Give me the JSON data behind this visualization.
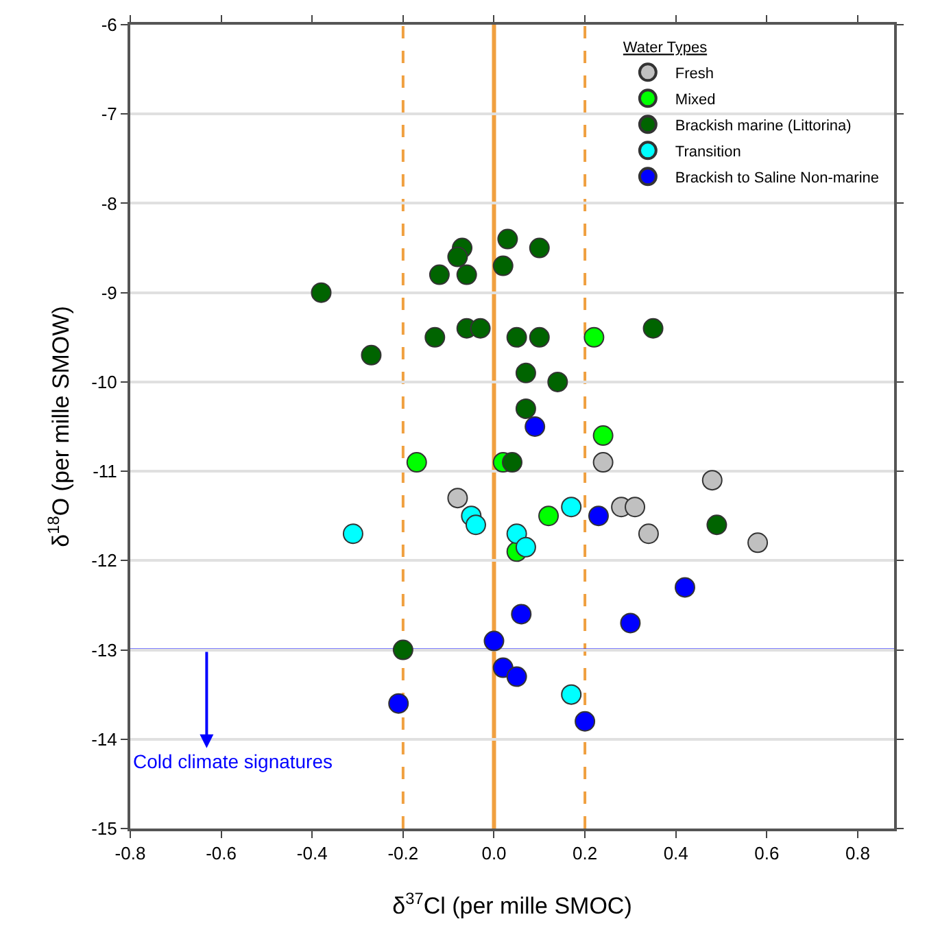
{
  "chart_data": {
    "type": "scatter",
    "xlabel": "δ$^{37}$Cl (per mille SMOC)",
    "ylabel": "δ$^{18}$O (per mille SMOW)",
    "legend_title": "Water Types",
    "xlim": [
      -0.8,
      0.88
    ],
    "xticks": [
      -0.8,
      -0.6,
      -0.4,
      -0.2,
      {
        "value": 0,
        "label": "0.0"
      },
      0.2,
      0.4,
      0.6,
      0.8
    ],
    "ylim": [
      -15,
      -6
    ],
    "yticks": [
      -15,
      -14,
      -13,
      -12,
      -11,
      -10,
      -9,
      -8,
      -7,
      -6
    ],
    "grid": "y",
    "legend": "top right",
    "marker": "circle",
    "series": [
      {
        "name": "Fresh",
        "color": "#c0c0c0",
        "x": [
          -0.08,
          0.24,
          0.48,
          0.28,
          0.31,
          0.34,
          0.58
        ],
        "values": [
          -11.3,
          -10.9,
          -11.1,
          -11.4,
          -11.4,
          -11.7,
          -11.8
        ]
      },
      {
        "name": "Mixed",
        "color": "#00ff00",
        "x": [
          -0.17,
          0.22,
          0.24,
          0.02,
          0.12,
          0.05
        ],
        "values": [
          -10.9,
          -9.5,
          -10.6,
          -10.9,
          -11.5,
          -11.9
        ]
      },
      {
        "name": "Brackish marine (Littorina)",
        "color": "#006400",
        "x": [
          -0.38,
          -0.27,
          -0.13,
          -0.12,
          -0.07,
          -0.08,
          -0.06,
          -0.06,
          -0.03,
          0.03,
          0.02,
          0.1,
          0.05,
          0.1,
          0.35,
          0.07,
          0.14,
          0.07,
          0.04,
          0.49,
          -0.2
        ],
        "values": [
          -9.0,
          -9.7,
          -9.5,
          -8.8,
          -8.5,
          -8.6,
          -8.8,
          -9.4,
          -9.4,
          -8.4,
          -8.7,
          -8.5,
          -9.5,
          -9.5,
          -9.4,
          -9.9,
          -10.0,
          -10.3,
          -10.9,
          -11.6,
          -13.0
        ]
      },
      {
        "name": "Transition",
        "color": "#00ffff",
        "x": [
          -0.31,
          -0.05,
          -0.04,
          0.05,
          0.07,
          0.17,
          0.17
        ],
        "values": [
          -11.7,
          -11.5,
          -11.6,
          -11.7,
          -11.85,
          -11.4,
          -13.5
        ]
      },
      {
        "name": "Brackish to Saline Non-marine",
        "color": "#0000ff",
        "x": [
          0.09,
          0.23,
          0.42,
          0.06,
          0.3,
          0.0,
          0.02,
          0.05,
          -0.21,
          0.2
        ],
        "values": [
          -10.5,
          -11.5,
          -12.3,
          -12.6,
          -12.7,
          -12.9,
          -13.2,
          -13.3,
          -13.6,
          -13.8
        ]
      }
    ],
    "ref_lines": [
      {
        "axis": "x",
        "value": -0.2,
        "color": "#f0a040",
        "line_style": "dashed"
      },
      {
        "axis": "x",
        "value": 0,
        "color": "#f0a040",
        "line_style": "solid"
      },
      {
        "axis": "x",
        "value": 0.2,
        "color": "#f0a040",
        "line_style": "dashed"
      },
      {
        "axis": "y",
        "value": -13,
        "color": "#0000ff",
        "line_style": "solid",
        "label": "Cold climate signatures"
      }
    ]
  }
}
